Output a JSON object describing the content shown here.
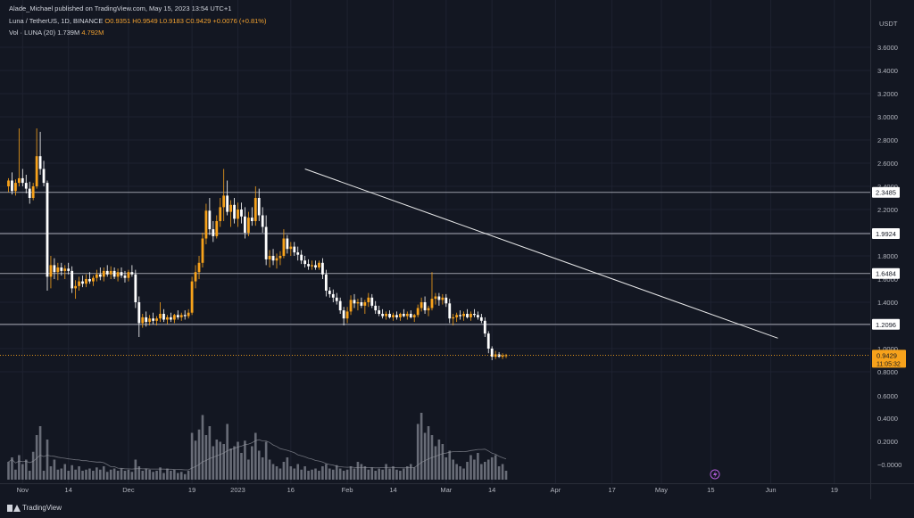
{
  "header": {
    "published": "Alade_Michael published on TradingView.com, May 15, 2023 13:54 UTC+1",
    "symbol": "Luna / TetherUS, 1D, BINANCE",
    "open": "O0.9351",
    "high": "H0.9549",
    "low": "L0.9183",
    "close": "C0.9429",
    "change": "+0.0076 (+0.81%)",
    "vol_label": "Vol · LUNA (20)",
    "vol_value": "1.739M",
    "vol_ma": "4.792M"
  },
  "footer": {
    "brand": "TradingView"
  },
  "colors": {
    "up": "#f7a21b",
    "down": "#ffffff",
    "bg": "#131722",
    "grid": "#1e2230",
    "axis": "#b2b5be",
    "hline": "#b2b5be",
    "trendline": "#ffffff",
    "vol_bar": "#787b86",
    "vol_ma": "#9598a1"
  },
  "chart_data": {
    "type": "candlestick",
    "currency": "USDT",
    "y_ticks": [
      "3.6000",
      "3.4000",
      "3.2000",
      "3.0000",
      "2.8000",
      "2.6000",
      "2.4000",
      "2.2000",
      "2.0000",
      "1.8000",
      "1.6000",
      "1.4000",
      "1.2000",
      "1.0000",
      "0.8000",
      "0.6000",
      "0.4000",
      "0.2000",
      "−0.0000"
    ],
    "x_ticks": [
      "Nov",
      "14",
      "Dec",
      "19",
      "2023",
      "16",
      "Feb",
      "14",
      "Mar",
      "14",
      "Apr",
      "17",
      "May",
      "15",
      "Jun",
      "19"
    ],
    "horizontal_levels": [
      {
        "label": "2.3485",
        "value": 2.3485
      },
      {
        "label": "1.9924",
        "value": 1.9924
      },
      {
        "label": "1.6484",
        "value": 1.6484
      },
      {
        "label": "1.2096",
        "value": 1.2096
      }
    ],
    "last_price": {
      "label": "0.9429",
      "value": 0.9429,
      "countdown": "11:05:32"
    },
    "trendline": {
      "from": {
        "date": "2023-01-20",
        "price": 2.55
      },
      "to": {
        "date": "2023-06-03",
        "price": 1.09
      }
    },
    "candles": [
      [
        2.4,
        2.47,
        2.35,
        2.45
      ],
      [
        2.45,
        2.52,
        2.33,
        2.36
      ],
      [
        2.36,
        2.46,
        2.32,
        2.43
      ],
      [
        2.43,
        2.9,
        2.4,
        2.47
      ],
      [
        2.47,
        2.55,
        2.4,
        2.43
      ],
      [
        2.43,
        2.5,
        2.34,
        2.38
      ],
      [
        2.38,
        2.44,
        2.25,
        2.3
      ],
      [
        2.3,
        2.43,
        2.28,
        2.4
      ],
      [
        2.4,
        2.9,
        2.38,
        2.66
      ],
      [
        2.66,
        2.87,
        2.5,
        2.55
      ],
      [
        2.55,
        2.62,
        2.4,
        2.43
      ],
      [
        2.43,
        2.45,
        1.5,
        1.62
      ],
      [
        1.62,
        1.8,
        1.52,
        1.72
      ],
      [
        1.72,
        1.78,
        1.6,
        1.66
      ],
      [
        1.66,
        1.74,
        1.59,
        1.7
      ],
      [
        1.7,
        1.74,
        1.63,
        1.67
      ],
      [
        1.67,
        1.72,
        1.6,
        1.69
      ],
      [
        1.69,
        1.74,
        1.64,
        1.67
      ],
      [
        1.67,
        1.71,
        1.48,
        1.52
      ],
      [
        1.52,
        1.59,
        1.43,
        1.54
      ],
      [
        1.54,
        1.62,
        1.5,
        1.58
      ],
      [
        1.58,
        1.63,
        1.53,
        1.56
      ],
      [
        1.56,
        1.64,
        1.53,
        1.6
      ],
      [
        1.6,
        1.66,
        1.56,
        1.58
      ],
      [
        1.58,
        1.63,
        1.54,
        1.61
      ],
      [
        1.61,
        1.68,
        1.58,
        1.64
      ],
      [
        1.64,
        1.7,
        1.59,
        1.62
      ],
      [
        1.62,
        1.7,
        1.58,
        1.67
      ],
      [
        1.67,
        1.72,
        1.62,
        1.64
      ],
      [
        1.64,
        1.71,
        1.6,
        1.67
      ],
      [
        1.67,
        1.7,
        1.6,
        1.62
      ],
      [
        1.62,
        1.69,
        1.58,
        1.66
      ],
      [
        1.66,
        1.7,
        1.61,
        1.63
      ],
      [
        1.63,
        1.67,
        1.57,
        1.61
      ],
      [
        1.61,
        1.68,
        1.58,
        1.66
      ],
      [
        1.66,
        1.72,
        1.62,
        1.64
      ],
      [
        1.64,
        1.68,
        1.35,
        1.4
      ],
      [
        1.4,
        1.45,
        1.1,
        1.22
      ],
      [
        1.22,
        1.3,
        1.18,
        1.27
      ],
      [
        1.27,
        1.32,
        1.19,
        1.23
      ],
      [
        1.23,
        1.29,
        1.2,
        1.26
      ],
      [
        1.26,
        1.31,
        1.21,
        1.24
      ],
      [
        1.24,
        1.28,
        1.2,
        1.26
      ],
      [
        1.26,
        1.4,
        1.23,
        1.3
      ],
      [
        1.3,
        1.34,
        1.23,
        1.25
      ],
      [
        1.25,
        1.29,
        1.21,
        1.27
      ],
      [
        1.27,
        1.31,
        1.23,
        1.25
      ],
      [
        1.25,
        1.3,
        1.22,
        1.29
      ],
      [
        1.29,
        1.33,
        1.25,
        1.27
      ],
      [
        1.27,
        1.31,
        1.24,
        1.29
      ],
      [
        1.29,
        1.33,
        1.25,
        1.28
      ],
      [
        1.28,
        1.34,
        1.26,
        1.31
      ],
      [
        1.31,
        1.62,
        1.29,
        1.58
      ],
      [
        1.58,
        1.72,
        1.52,
        1.66
      ],
      [
        1.66,
        1.8,
        1.6,
        1.74
      ],
      [
        1.74,
        2.0,
        1.7,
        1.95
      ],
      [
        1.95,
        2.25,
        1.9,
        2.19
      ],
      [
        2.19,
        2.3,
        1.98,
        2.03
      ],
      [
        2.03,
        2.1,
        1.92,
        1.97
      ],
      [
        1.97,
        2.15,
        1.95,
        2.1
      ],
      [
        2.1,
        2.3,
        2.05,
        2.22
      ],
      [
        2.22,
        2.55,
        2.1,
        2.32
      ],
      [
        2.32,
        2.45,
        2.15,
        2.18
      ],
      [
        2.18,
        2.28,
        2.05,
        2.24
      ],
      [
        2.24,
        2.3,
        2.08,
        2.12
      ],
      [
        2.12,
        2.26,
        2.05,
        2.2
      ],
      [
        2.2,
        2.26,
        2.08,
        2.14
      ],
      [
        2.14,
        2.22,
        1.95,
        2.0
      ],
      [
        2.0,
        2.18,
        1.97,
        2.13
      ],
      [
        2.13,
        2.22,
        2.06,
        2.1
      ],
      [
        2.1,
        2.4,
        2.06,
        2.3
      ],
      [
        2.3,
        2.38,
        2.1,
        2.15
      ],
      [
        2.15,
        2.22,
        2.0,
        2.05
      ],
      [
        2.05,
        2.15,
        1.72,
        1.77
      ],
      [
        1.77,
        1.85,
        1.7,
        1.8
      ],
      [
        1.8,
        1.86,
        1.72,
        1.76
      ],
      [
        1.76,
        1.82,
        1.69,
        1.78
      ],
      [
        1.78,
        1.84,
        1.72,
        1.8
      ],
      [
        1.8,
        2.03,
        1.78,
        1.95
      ],
      [
        1.95,
        1.98,
        1.82,
        1.86
      ],
      [
        1.86,
        1.92,
        1.8,
        1.88
      ],
      [
        1.88,
        1.92,
        1.8,
        1.83
      ],
      [
        1.83,
        1.88,
        1.76,
        1.81
      ],
      [
        1.81,
        1.85,
        1.73,
        1.76
      ],
      [
        1.76,
        1.8,
        1.7,
        1.73
      ],
      [
        1.73,
        1.77,
        1.68,
        1.71
      ],
      [
        1.71,
        1.76,
        1.68,
        1.72
      ],
      [
        1.72,
        1.76,
        1.68,
        1.7
      ],
      [
        1.7,
        1.76,
        1.68,
        1.74
      ],
      [
        1.74,
        1.78,
        1.6,
        1.64
      ],
      [
        1.64,
        1.68,
        1.45,
        1.5
      ],
      [
        1.5,
        1.53,
        1.44,
        1.47
      ],
      [
        1.47,
        1.51,
        1.4,
        1.44
      ],
      [
        1.44,
        1.48,
        1.38,
        1.41
      ],
      [
        1.41,
        1.44,
        1.3,
        1.33
      ],
      [
        1.33,
        1.36,
        1.2,
        1.26
      ],
      [
        1.26,
        1.36,
        1.22,
        1.32
      ],
      [
        1.32,
        1.46,
        1.29,
        1.42
      ],
      [
        1.42,
        1.47,
        1.35,
        1.39
      ],
      [
        1.39,
        1.43,
        1.33,
        1.4
      ],
      [
        1.4,
        1.44,
        1.35,
        1.37
      ],
      [
        1.37,
        1.42,
        1.3,
        1.4
      ],
      [
        1.4,
        1.48,
        1.36,
        1.44
      ],
      [
        1.44,
        1.47,
        1.35,
        1.37
      ],
      [
        1.37,
        1.41,
        1.3,
        1.33
      ],
      [
        1.33,
        1.37,
        1.28,
        1.3
      ],
      [
        1.3,
        1.34,
        1.26,
        1.28
      ],
      [
        1.28,
        1.32,
        1.25,
        1.3
      ],
      [
        1.3,
        1.33,
        1.26,
        1.27
      ],
      [
        1.27,
        1.31,
        1.24,
        1.29
      ],
      [
        1.29,
        1.32,
        1.25,
        1.27
      ],
      [
        1.27,
        1.31,
        1.24,
        1.3
      ],
      [
        1.3,
        1.34,
        1.27,
        1.28
      ],
      [
        1.28,
        1.32,
        1.25,
        1.3
      ],
      [
        1.3,
        1.33,
        1.26,
        1.27
      ],
      [
        1.27,
        1.3,
        1.23,
        1.29
      ],
      [
        1.29,
        1.38,
        1.27,
        1.35
      ],
      [
        1.35,
        1.44,
        1.32,
        1.4
      ],
      [
        1.4,
        1.45,
        1.3,
        1.33
      ],
      [
        1.33,
        1.37,
        1.28,
        1.35
      ],
      [
        1.35,
        1.66,
        1.33,
        1.43
      ],
      [
        1.43,
        1.48,
        1.38,
        1.45
      ],
      [
        1.45,
        1.48,
        1.37,
        1.42
      ],
      [
        1.42,
        1.47,
        1.38,
        1.44
      ],
      [
        1.44,
        1.47,
        1.36,
        1.39
      ],
      [
        1.39,
        1.43,
        1.22,
        1.26
      ],
      [
        1.26,
        1.3,
        1.2,
        1.27
      ],
      [
        1.27,
        1.31,
        1.23,
        1.29
      ],
      [
        1.29,
        1.33,
        1.25,
        1.28
      ],
      [
        1.28,
        1.32,
        1.24,
        1.3
      ],
      [
        1.3,
        1.34,
        1.26,
        1.27
      ],
      [
        1.27,
        1.32,
        1.24,
        1.3
      ],
      [
        1.3,
        1.34,
        1.27,
        1.29
      ],
      [
        1.29,
        1.32,
        1.25,
        1.27
      ],
      [
        1.27,
        1.3,
        1.22,
        1.24
      ],
      [
        1.24,
        1.27,
        1.1,
        1.13
      ],
      [
        1.13,
        1.15,
        0.96,
        1.0
      ],
      [
        1.0,
        1.02,
        0.9,
        0.93
      ],
      [
        0.93,
        0.98,
        0.91,
        0.95
      ],
      [
        0.95,
        0.97,
        0.92,
        0.93
      ],
      [
        0.93,
        0.96,
        0.91,
        0.94
      ],
      [
        0.9351,
        0.9549,
        0.9183,
        0.9429
      ]
    ],
    "volume": [
      16,
      20,
      9,
      22,
      14,
      18,
      8,
      25,
      40,
      48,
      8,
      36,
      12,
      18,
      9,
      10,
      14,
      8,
      13,
      9,
      12,
      8,
      9,
      10,
      8,
      11,
      9,
      12,
      7,
      9,
      10,
      8,
      10,
      8,
      9,
      7,
      18,
      12,
      8,
      10,
      9,
      7,
      8,
      11,
      6,
      10,
      8,
      9,
      6,
      7,
      5,
      8,
      42,
      35,
      45,
      58,
      40,
      48,
      30,
      36,
      34,
      32,
      50,
      28,
      30,
      34,
      24,
      35,
      18,
      30,
      42,
      26,
      20,
      34,
      18,
      14,
      12,
      10,
      16,
      20,
      12,
      10,
      14,
      9,
      12,
      8,
      9,
      10,
      8,
      12,
      14,
      10,
      9,
      13,
      10,
      8,
      9,
      12,
      10,
      16,
      14,
      12,
      9,
      11,
      8,
      10,
      9,
      14,
      10,
      12,
      9,
      8,
      10,
      12,
      14,
      11,
      50,
      60,
      42,
      48,
      40,
      30,
      36,
      32,
      20,
      26,
      18,
      14,
      12,
      10,
      16,
      22,
      18,
      24,
      14,
      16,
      18,
      20,
      22,
      12,
      14,
      8
    ],
    "vol_scale_max": 80
  }
}
